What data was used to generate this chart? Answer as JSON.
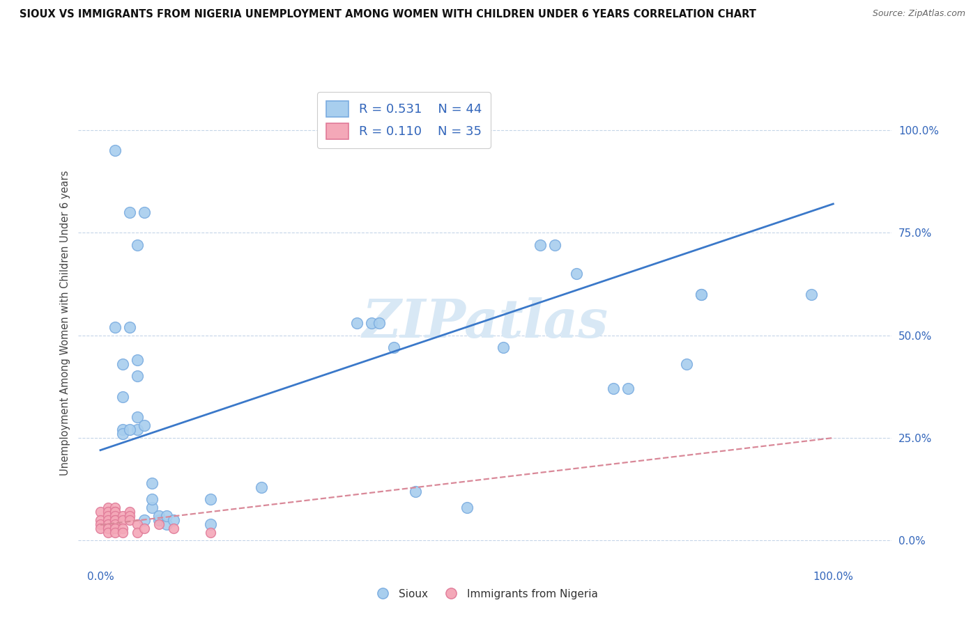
{
  "title": "SIOUX VS IMMIGRANTS FROM NIGERIA UNEMPLOYMENT AMONG WOMEN WITH CHILDREN UNDER 6 YEARS CORRELATION CHART",
  "source": "Source: ZipAtlas.com",
  "ylabel": "Unemployment Among Women with Children Under 6 years",
  "ytick_labels": [
    "100.0%",
    "75.0%",
    "50.0%",
    "25.0%",
    "0.0%"
  ],
  "ytick_values": [
    1.0,
    0.75,
    0.5,
    0.25,
    0.0
  ],
  "xtick_values": [
    0.0,
    1.0
  ],
  "xtick_labels": [
    "0.0%",
    "100.0%"
  ],
  "xlim": [
    -0.03,
    1.08
  ],
  "ylim": [
    -0.06,
    1.12
  ],
  "sioux_color": "#A8CEEE",
  "nigeria_color": "#F4A8B8",
  "sioux_edge": "#7AACE0",
  "nigeria_edge": "#E07A98",
  "line_blue": "#3A78C9",
  "line_pink": "#D98898",
  "watermark_color": "#D8E8F5",
  "sioux_R": "0.531",
  "sioux_N": "44",
  "nigeria_R": "0.110",
  "nigeria_N": "35",
  "sioux_points": [
    [
      0.02,
      0.95
    ],
    [
      0.06,
      0.8
    ],
    [
      0.05,
      0.72
    ],
    [
      0.04,
      0.8
    ],
    [
      0.02,
      0.52
    ],
    [
      0.03,
      0.43
    ],
    [
      0.03,
      0.35
    ],
    [
      0.03,
      0.27
    ],
    [
      0.04,
      0.52
    ],
    [
      0.05,
      0.44
    ],
    [
      0.05,
      0.4
    ],
    [
      0.05,
      0.27
    ],
    [
      0.05,
      0.3
    ],
    [
      0.03,
      0.26
    ],
    [
      0.04,
      0.27
    ],
    [
      0.06,
      0.28
    ],
    [
      0.06,
      0.05
    ],
    [
      0.07,
      0.08
    ],
    [
      0.07,
      0.1
    ],
    [
      0.07,
      0.14
    ],
    [
      0.08,
      0.05
    ],
    [
      0.08,
      0.06
    ],
    [
      0.09,
      0.04
    ],
    [
      0.09,
      0.06
    ],
    [
      0.1,
      0.05
    ],
    [
      0.15,
      0.04
    ],
    [
      0.22,
      0.13
    ],
    [
      0.15,
      0.1
    ],
    [
      0.35,
      0.53
    ],
    [
      0.37,
      0.53
    ],
    [
      0.38,
      0.53
    ],
    [
      0.4,
      0.47
    ],
    [
      0.43,
      0.12
    ],
    [
      0.5,
      0.08
    ],
    [
      0.55,
      0.47
    ],
    [
      0.6,
      0.72
    ],
    [
      0.62,
      0.72
    ],
    [
      0.65,
      0.65
    ],
    [
      0.7,
      0.37
    ],
    [
      0.72,
      0.37
    ],
    [
      0.8,
      0.43
    ],
    [
      0.82,
      0.6
    ],
    [
      0.82,
      0.6
    ],
    [
      0.97,
      0.6
    ]
  ],
  "nigeria_points": [
    [
      0.0,
      0.07
    ],
    [
      0.0,
      0.05
    ],
    [
      0.0,
      0.04
    ],
    [
      0.0,
      0.03
    ],
    [
      0.01,
      0.08
    ],
    [
      0.01,
      0.07
    ],
    [
      0.01,
      0.06
    ],
    [
      0.01,
      0.05
    ],
    [
      0.01,
      0.04
    ],
    [
      0.01,
      0.03
    ],
    [
      0.01,
      0.03
    ],
    [
      0.01,
      0.02
    ],
    [
      0.02,
      0.08
    ],
    [
      0.02,
      0.07
    ],
    [
      0.02,
      0.07
    ],
    [
      0.02,
      0.06
    ],
    [
      0.02,
      0.05
    ],
    [
      0.02,
      0.05
    ],
    [
      0.02,
      0.04
    ],
    [
      0.02,
      0.03
    ],
    [
      0.02,
      0.03
    ],
    [
      0.02,
      0.02
    ],
    [
      0.03,
      0.06
    ],
    [
      0.03,
      0.05
    ],
    [
      0.03,
      0.03
    ],
    [
      0.03,
      0.02
    ],
    [
      0.04,
      0.07
    ],
    [
      0.04,
      0.06
    ],
    [
      0.04,
      0.05
    ],
    [
      0.05,
      0.04
    ],
    [
      0.05,
      0.02
    ],
    [
      0.06,
      0.03
    ],
    [
      0.08,
      0.04
    ],
    [
      0.1,
      0.03
    ],
    [
      0.15,
      0.02
    ]
  ],
  "sioux_line_x": [
    0.0,
    1.0
  ],
  "sioux_line_y": [
    0.22,
    0.82
  ],
  "nigeria_line_x": [
    0.0,
    1.0
  ],
  "nigeria_line_y": [
    0.038,
    0.25
  ]
}
